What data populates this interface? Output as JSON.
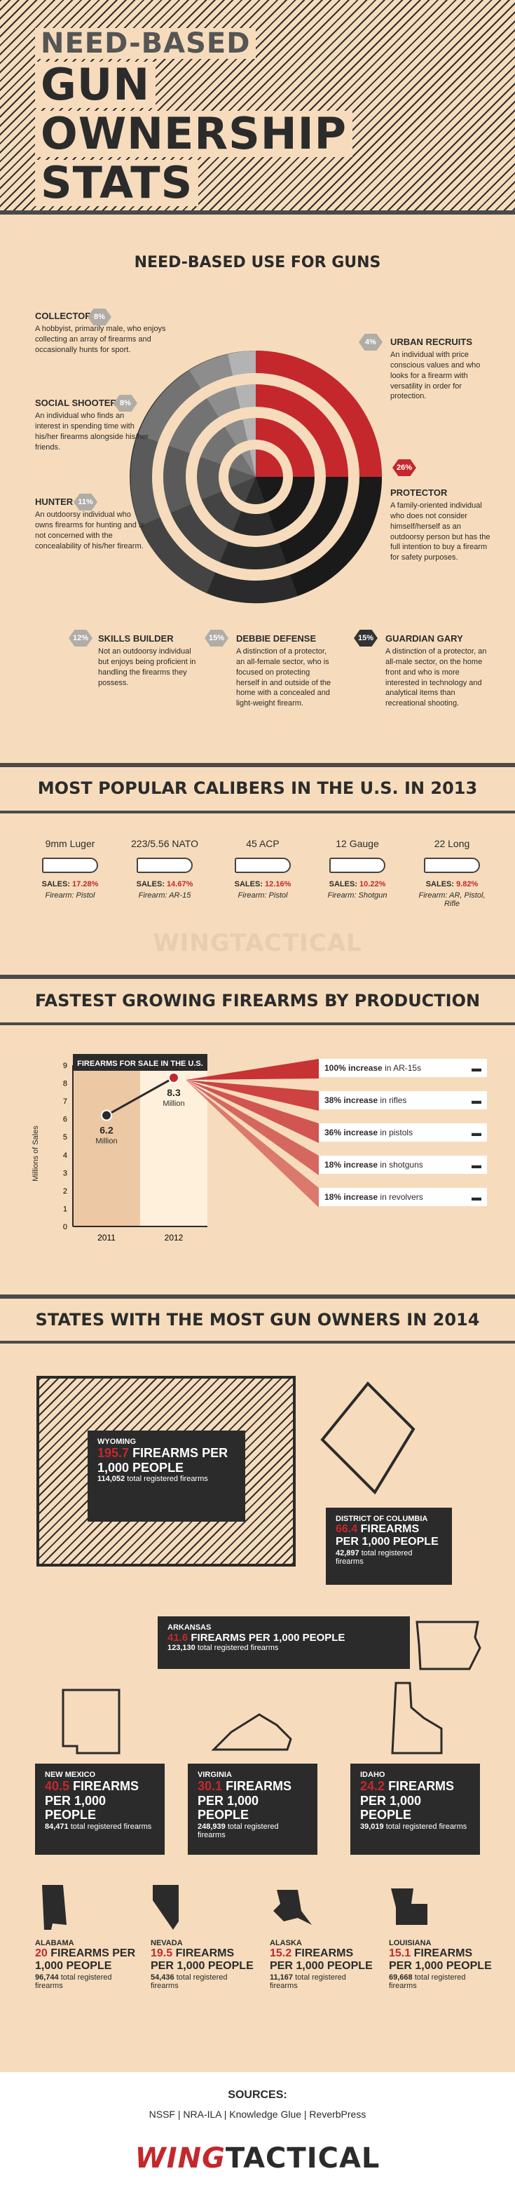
{
  "header": {
    "line1": "NEED-BASED",
    "line2": "GUN",
    "line3": "OWNERSHIP",
    "line4": "STATS"
  },
  "use": {
    "title": "NEED-BASED USE FOR GUNS",
    "collector": {
      "title": "COLLECTOR",
      "pct": "8%",
      "desc": "A hobbyist, primarily male, who enjoys collecting an array of firearms and occasionally hunts for sport."
    },
    "social": {
      "title": "SOCIAL SHOOTER",
      "pct": "8%",
      "desc": "An individual who finds an interest in spending time with his/her firearms alongside his/her friends."
    },
    "hunter": {
      "title": "HUNTER",
      "pct": "11%",
      "desc": "An outdoorsy individual who owns firearms for hunting and is not concerned with the concealability of his/her firearm."
    },
    "skills": {
      "title": "SKILLS BUILDER",
      "pct": "12%",
      "desc": "Not an outdoorsy individual but enjoys being proficient in handling the firearms they possess."
    },
    "debbie": {
      "title": "DEBBIE DEFENSE",
      "pct": "15%",
      "desc": "A distinction of a protector, an all-female sector, who is focused on protecting herself in and outside of the home with a concealed and light-weight firearm."
    },
    "guardian": {
      "title": "GUARDIAN GARY",
      "pct": "15%",
      "desc": "A distinction of a protector, an all-male sector, on the home front and who is more interested in technology and analytical items than recreational shooting."
    },
    "protector": {
      "title": "PROTECTOR",
      "pct": "26%",
      "desc": "A family-oriented individual who does not consider himself/herself as an outdoorsy person but has the full intention to buy a firearm for safety purposes."
    },
    "urban": {
      "title": "URBAN RECRUITS",
      "pct": "4%",
      "desc": "An individual with price conscious values and who looks for a firearm with versatility in order for protection."
    }
  },
  "calibers": {
    "title": "MOST POPULAR CALIBERS IN THE U.S. IN 2013",
    "sales_label": "SALES:",
    "firearm_label": "Firearm:",
    "items": [
      {
        "name": "9mm Luger",
        "sales": "17.28%",
        "firearm": "Pistol"
      },
      {
        "name": "223/5.56 NATO",
        "sales": "14.67%",
        "firearm": "AR-15"
      },
      {
        "name": "45 ACP",
        "sales": "12.16%",
        "firearm": "Pistol"
      },
      {
        "name": "12 Gauge",
        "sales": "10.22%",
        "firearm": "Shotgun"
      },
      {
        "name": "22 Long",
        "sales": "9.82%",
        "firearm": "AR, Pistol, Rifle"
      }
    ],
    "watermark": "WINGTACTICAL"
  },
  "growth": {
    "title": "FASTEST GROWING FIREARMS BY PRODUCTION",
    "chart_title": "FIREARMS FOR SALE IN THE U.S.",
    "ylabel": "Millions of Sales",
    "items": [
      {
        "pct": "100% increase",
        "what": "in AR-15s"
      },
      {
        "pct": "38% increase",
        "what": "in rifles"
      },
      {
        "pct": "36% increase",
        "what": "in pistols"
      },
      {
        "pct": "18% increase",
        "what": "in shotguns"
      },
      {
        "pct": "18% increase",
        "what": "in revolvers"
      }
    ],
    "val2011": "6.2",
    "val2012": "8.3",
    "million": "Million"
  },
  "chart_data": {
    "type": "line",
    "title": "FIREARMS FOR SALE IN THE U.S.",
    "xlabel": "",
    "ylabel": "Millions of Sales",
    "categories": [
      "2011",
      "2012"
    ],
    "values": [
      6.2,
      8.3
    ],
    "ylim": [
      0,
      9
    ],
    "yticks": [
      0,
      1,
      2,
      3,
      4,
      5,
      6,
      7,
      8,
      9
    ]
  },
  "states": {
    "title": "STATES WITH THE MOST GUN OWNERS IN 2014",
    "unit": "FIREARMS PER 1,000 PEOPLE",
    "reg": "total registered firearms",
    "wyoming": {
      "name": "WYOMING",
      "rate": "195.7",
      "total": "114,052"
    },
    "dc": {
      "name": "DISTRICT OF COLUMBIA",
      "rate": "66.4",
      "total": "42,897"
    },
    "arkansas": {
      "name": "ARKANSAS",
      "rate": "41.6",
      "total": "123,130"
    },
    "newmexico": {
      "name": "NEW MEXICO",
      "rate": "40.5",
      "total": "84,471"
    },
    "virginia": {
      "name": "VIRGINIA",
      "rate": "30.1",
      "total": "248,939"
    },
    "idaho": {
      "name": "IDAHO",
      "rate": "24.2",
      "total": "39,019"
    },
    "alabama": {
      "name": "ALABAMA",
      "rate": "20",
      "total": "96,744"
    },
    "nevada": {
      "name": "NEVADA",
      "rate": "19.5",
      "total": "54,436"
    },
    "alaska": {
      "name": "ALASKA",
      "rate": "15.2",
      "total": "11,167"
    },
    "louisiana": {
      "name": "LOUISIANA",
      "rate": "15.1",
      "total": "69,668"
    }
  },
  "sources": {
    "title": "SOURCES:",
    "list": "NSSF | NRA-ILA | Knowledge Glue | ReverbPress"
  },
  "brand": {
    "wing": "WING",
    "tactical": "TACTICAL",
    "accent": "#c4282c"
  }
}
